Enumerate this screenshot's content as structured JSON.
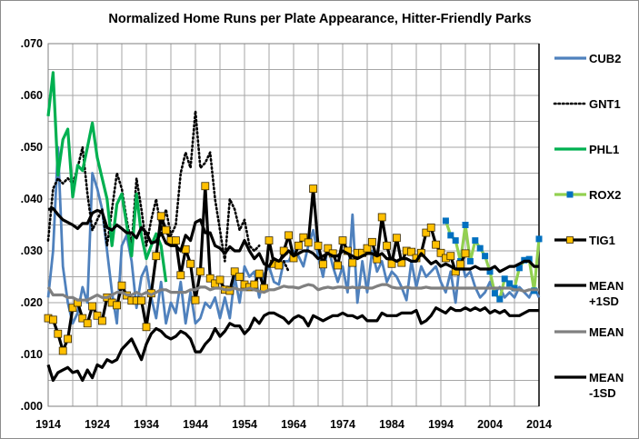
{
  "chart_data": {
    "type": "line",
    "title": "Normalized Home Runs per Plate Appearance, Hitter-Friendly Parks",
    "xlabel": "",
    "ylabel": "",
    "xlim": [
      1914,
      2014
    ],
    "ylim": [
      0,
      0.07
    ],
    "x_ticks": [
      "1914",
      "1924",
      "1934",
      "1944",
      "1954",
      "1964",
      "1974",
      "1984",
      "1994",
      "2004",
      "2014"
    ],
    "y_ticks": [
      ".000",
      ".010",
      ".020",
      ".030",
      ".040",
      ".050",
      ".060",
      ".070"
    ],
    "grid": true,
    "legend_position": "right",
    "series": [
      {
        "name": "CUB2",
        "color": "#4f81bd",
        "style": "solid",
        "start_year": 1914,
        "values": [
          0.021,
          0.03,
          0.05,
          0.027,
          0.02,
          0.016,
          0.018,
          0.023,
          0.02,
          0.045,
          0.042,
          0.038,
          0.03,
          0.022,
          0.016,
          0.031,
          0.033,
          0.028,
          0.019,
          0.025,
          0.027,
          0.021,
          0.017,
          0.024,
          0.016,
          0.02,
          0.018,
          0.024,
          0.016,
          0.022,
          0.016,
          0.017,
          0.02,
          0.019,
          0.021,
          0.017,
          0.021,
          0.017,
          0.025,
          0.02,
          0.027,
          0.025,
          0.026,
          0.021,
          0.0255,
          0.027,
          0.024,
          0.0235,
          0.028,
          0.028,
          0.03,
          0.029,
          0.027,
          0.031,
          0.034,
          0.029,
          0.025,
          0.031,
          0.027,
          0.024,
          0.027,
          0.022,
          0.037,
          0.02,
          0.028,
          0.022,
          0.03,
          0.026,
          0.028,
          0.024,
          0.026,
          0.025,
          0.023,
          0.0205,
          0.028,
          0.023,
          0.027,
          0.025,
          0.026,
          0.027,
          0.024,
          0.022,
          0.026,
          0.02,
          0.029,
          0.025,
          0.026,
          0.023,
          0.021,
          0.022,
          0.024,
          0.022,
          0.023,
          0.021,
          0.022,
          0.021,
          0.023,
          0.022,
          0.021,
          0.023,
          0.021
        ]
      },
      {
        "name": "GNT1",
        "color": "#000000",
        "style": "dotted",
        "start_year": 1914,
        "values": [
          0.032,
          0.042,
          0.044,
          0.043,
          0.044,
          0.043,
          0.046,
          0.05,
          0.041,
          0.034,
          0.036,
          0.038,
          0.031,
          0.038,
          0.045,
          0.042,
          0.036,
          0.031,
          0.044,
          0.038,
          0.031,
          0.036,
          0.04,
          0.034,
          0.038,
          0.033,
          0.035,
          0.045,
          0.049,
          0.046,
          0.057,
          0.046,
          0.047,
          0.049,
          0.04,
          0.034,
          0.028,
          0.04,
          0.038,
          0.034,
          0.036,
          0.031,
          0.03,
          0.031,
          null,
          null,
          null,
          null,
          0.028,
          0.026
        ]
      },
      {
        "name": "PHL1",
        "color": "#00b050",
        "style": "solid",
        "start_year": 1914,
        "values": [
          0.056,
          0.0644,
          0.0446,
          0.0515,
          0.0535,
          0.0404,
          0.0465,
          0.0455,
          0.05,
          0.0547,
          0.048,
          0.044,
          0.04,
          0.031,
          0.039,
          0.041,
          0.035,
          0.029,
          0.041,
          0.033,
          0.0285,
          0.031,
          0.0333,
          0.031,
          0.024
        ]
      },
      {
        "name": "ROX2",
        "color": "#92d050",
        "marker": "square",
        "marker_color": "#0070c0",
        "style": "solid",
        "start_year": 1995,
        "values": [
          0.0358,
          0.033,
          0.032,
          0.028,
          0.035,
          0.028,
          0.032,
          0.0305,
          0.029,
          0.026,
          0.0218,
          0.0207,
          0.0246,
          0.0237,
          0.0228,
          0.0267,
          0.0282,
          0.0284,
          0.0223,
          0.0323
        ]
      },
      {
        "name": "TIG1",
        "color": "#000000",
        "marker": "square",
        "marker_color": "#ffc000",
        "style": "solid",
        "start_year": 1914,
        "values": [
          0.017,
          0.0167,
          0.014,
          0.0107,
          0.013,
          0.019,
          0.02,
          0.017,
          0.016,
          0.0193,
          0.0175,
          0.0165,
          0.021,
          0.02,
          0.0195,
          0.0233,
          0.0214,
          0.0204,
          0.0204,
          0.0204,
          0.0153,
          0.0218,
          0.029,
          0.0367,
          0.034,
          0.032,
          0.032,
          0.0253,
          0.0303,
          0.0275,
          0.0205,
          0.026,
          0.0425,
          0.0247,
          0.0237,
          0.0244,
          0.0225,
          0.0223,
          0.026,
          0.025,
          0.0235,
          0.023,
          0.0235,
          0.0256,
          0.0228,
          0.032,
          0.0275,
          0.0272,
          0.03,
          0.033,
          0.0286,
          0.031,
          0.0326,
          0.0316,
          0.042,
          0.031,
          0.0274,
          0.0305,
          0.0295,
          0.0272,
          0.032,
          0.03,
          0.0277,
          0.0296,
          0.0296,
          0.0305,
          0.0317,
          0.0284,
          0.0365,
          0.031,
          0.0275,
          0.0325,
          0.0277,
          0.03,
          0.0298,
          0.0286,
          0.0296,
          0.0335,
          0.0345,
          0.0312,
          0.0296,
          0.0286,
          0.029,
          0.026,
          0.0274,
          0.0295
        ]
      },
      {
        "name": "MEAN +1SD",
        "color": "#000000",
        "style": "solid",
        "start_year": 1914,
        "values": [
          0.038,
          0.0382,
          0.037,
          0.036,
          0.0355,
          0.035,
          0.0343,
          0.0353,
          0.0353,
          0.0373,
          0.0378,
          0.0375,
          0.0345,
          0.034,
          0.035,
          0.0343,
          0.0335,
          0.0335,
          0.0325,
          0.0345,
          0.0335,
          0.0315,
          0.0318,
          0.0335,
          0.0315,
          0.031,
          0.031,
          0.03,
          0.033,
          0.032,
          0.0355,
          0.036,
          0.0335,
          0.0335,
          0.031,
          0.0305,
          0.0295,
          0.0308,
          0.03,
          0.03,
          0.032,
          0.03,
          0.0285,
          0.0295,
          0.0275,
          0.027,
          0.0285,
          0.028,
          0.029,
          0.03,
          0.029,
          0.0295,
          0.03,
          0.03,
          0.0295,
          0.0285,
          0.029,
          0.0295,
          0.029,
          0.029,
          0.03,
          0.0295,
          0.029,
          0.0285,
          0.029,
          0.0295,
          0.0295,
          0.029,
          0.0295,
          0.0285,
          0.0285,
          0.028,
          0.0285,
          0.0285,
          0.028,
          0.028,
          0.0295,
          0.0285,
          0.0275,
          0.028,
          0.027,
          0.0275,
          0.027,
          0.0265,
          0.0265,
          0.0265,
          0.0265,
          0.027,
          0.0265,
          0.0265,
          0.0265,
          0.027,
          0.026,
          0.0265,
          0.027,
          0.027,
          0.0275,
          0.028,
          0.028,
          0.027,
          0.027
        ]
      },
      {
        "name": "MEAN",
        "color": "#808080",
        "style": "solid",
        "start_year": 1914,
        "values": [
          0.023,
          0.0215,
          0.0215,
          0.0215,
          0.021,
          0.021,
          0.0205,
          0.0205,
          0.0205,
          0.021,
          0.0215,
          0.021,
          0.021,
          0.0215,
          0.022,
          0.022,
          0.0215,
          0.0215,
          0.022,
          0.0215,
          0.022,
          0.0215,
          0.022,
          0.0225,
          0.0225,
          0.022,
          0.022,
          0.022,
          0.022,
          0.0225,
          0.0225,
          0.023,
          0.023,
          0.0225,
          0.0228,
          0.0228,
          0.0225,
          0.0225,
          0.0228,
          0.0225,
          0.0225,
          0.0228,
          0.0225,
          0.0222,
          0.022,
          0.0225,
          0.0225,
          0.0228,
          0.0232,
          0.023,
          0.023,
          0.0228,
          0.0232,
          0.0235,
          0.0233,
          0.0225,
          0.0228,
          0.023,
          0.0228,
          0.023,
          0.023,
          0.0228,
          0.023,
          0.0228,
          0.023,
          0.0228,
          0.0228,
          0.0232,
          0.0235,
          0.0235,
          0.023,
          0.0228,
          0.0228,
          0.023,
          0.0228,
          0.0228,
          0.0228,
          0.023,
          0.0228,
          0.0228,
          0.0228,
          0.0228,
          0.0228,
          0.0228,
          0.0228,
          0.0228,
          0.0228,
          0.0228,
          0.0228,
          0.0228,
          0.0228,
          0.0228,
          0.0228,
          0.0228,
          0.0228,
          0.0225,
          0.0225,
          0.0222,
          0.0225,
          0.0225,
          0.0225
        ]
      },
      {
        "name": "MEAN -1SD",
        "color": "#000000",
        "style": "solid",
        "start_year": 1914,
        "values": [
          0.008,
          0.005,
          0.0065,
          0.007,
          0.0075,
          0.0065,
          0.0068,
          0.005,
          0.007,
          0.0055,
          0.008,
          0.0075,
          0.009,
          0.0085,
          0.009,
          0.011,
          0.012,
          0.013,
          0.011,
          0.009,
          0.012,
          0.014,
          0.015,
          0.0145,
          0.0135,
          0.013,
          0.0135,
          0.0145,
          0.014,
          0.013,
          0.0105,
          0.0105,
          0.012,
          0.013,
          0.015,
          0.0135,
          0.0145,
          0.016,
          0.0155,
          0.0155,
          0.014,
          0.015,
          0.017,
          0.016,
          0.0175,
          0.018,
          0.018,
          0.0175,
          0.017,
          0.016,
          0.017,
          0.0175,
          0.017,
          0.0155,
          0.0175,
          0.017,
          0.0165,
          0.017,
          0.0175,
          0.0175,
          0.018,
          0.0175,
          0.0175,
          0.017,
          0.0175,
          0.0165,
          0.0165,
          0.0165,
          0.018,
          0.0175,
          0.0175,
          0.0175,
          0.018,
          0.018,
          0.018,
          0.0185,
          0.016,
          0.0165,
          0.0175,
          0.019,
          0.0185,
          0.018,
          0.019,
          0.0185,
          0.0185,
          0.019,
          0.0185,
          0.019,
          0.0185,
          0.019,
          0.018,
          0.0185,
          0.018,
          0.0185,
          0.0175,
          0.0175,
          0.0175,
          0.018,
          0.0185,
          0.0185,
          0.0185
        ]
      }
    ],
    "legend": [
      {
        "line1": "CUB2",
        "line2": ""
      },
      {
        "line1": "GNT1",
        "line2": ""
      },
      {
        "line1": "PHL1",
        "line2": ""
      },
      {
        "line1": "ROX2",
        "line2": ""
      },
      {
        "line1": "TIG1",
        "line2": ""
      },
      {
        "line1": "MEAN",
        "line2": "+1SD"
      },
      {
        "line1": "MEAN",
        "line2": ""
      },
      {
        "line1": "MEAN",
        "line2": "-1SD"
      }
    ]
  }
}
